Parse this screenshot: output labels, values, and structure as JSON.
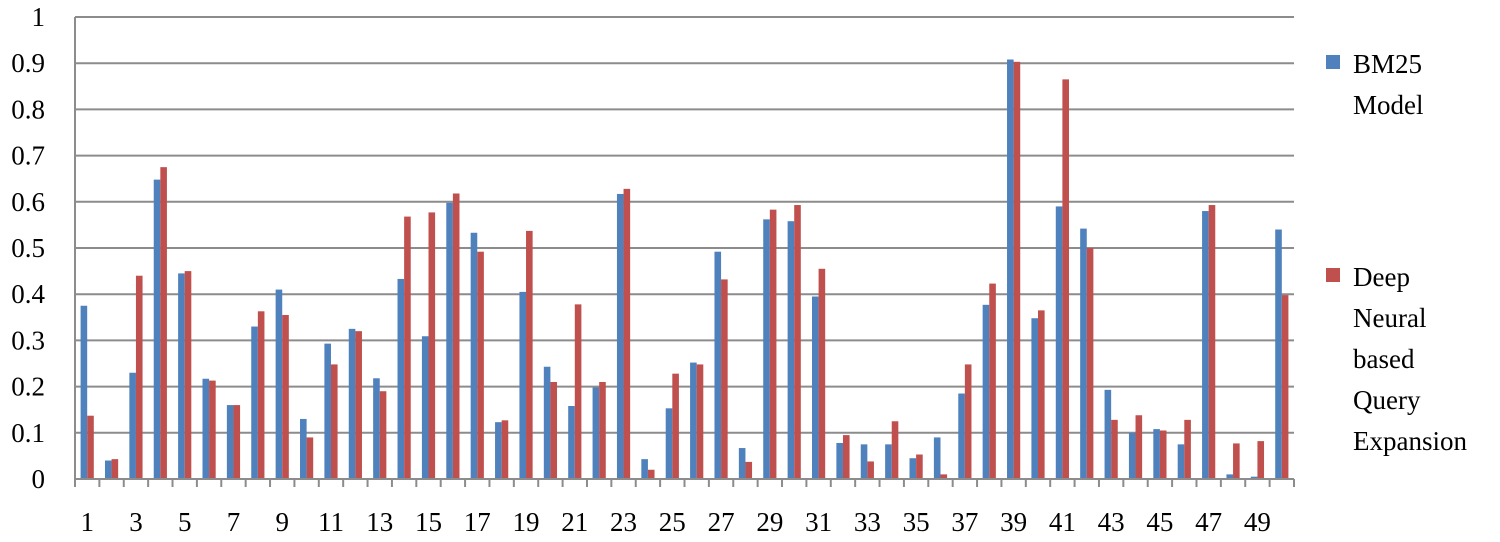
{
  "chart_data": {
    "type": "bar",
    "categories": [
      "1",
      "2",
      "3",
      "4",
      "5",
      "6",
      "7",
      "8",
      "9",
      "10",
      "11",
      "12",
      "13",
      "14",
      "15",
      "16",
      "17",
      "18",
      "19",
      "20",
      "21",
      "22",
      "23",
      "24",
      "25",
      "26",
      "27",
      "28",
      "29",
      "30",
      "31",
      "32",
      "33",
      "34",
      "35",
      "36",
      "37",
      "38",
      "39",
      "40",
      "41",
      "42",
      "43",
      "44",
      "45",
      "46",
      "47",
      "48",
      "49",
      "50"
    ],
    "x_tick_labels": [
      "1",
      "3",
      "5",
      "7",
      "9",
      "11",
      "13",
      "15",
      "17",
      "19",
      "21",
      "23",
      "25",
      "27",
      "29",
      "31",
      "33",
      "35",
      "37",
      "39",
      "41",
      "43",
      "45",
      "47",
      "49"
    ],
    "y_tick_labels": [
      "0",
      "0.1",
      "0.2",
      "0.3",
      "0.4",
      "0.5",
      "0.6",
      "0.7",
      "0.8",
      "0.9",
      "1"
    ],
    "ylim": [
      0,
      1
    ],
    "grid": true,
    "legend_position": "right",
    "series": [
      {
        "name": "BM25 Model",
        "legend_lines": [
          "BM25",
          "Model"
        ],
        "color": "#4f81bd",
        "values": [
          0.375,
          0.04,
          0.23,
          0.648,
          0.445,
          0.217,
          0.16,
          0.33,
          0.41,
          0.13,
          0.293,
          0.325,
          0.218,
          0.433,
          0.309,
          0.598,
          0.533,
          0.123,
          0.405,
          0.243,
          0.158,
          0.198,
          0.617,
          0.043,
          0.153,
          0.252,
          0.492,
          0.067,
          0.562,
          0.558,
          0.395,
          0.078,
          0.075,
          0.075,
          0.045,
          0.09,
          0.185,
          0.377,
          0.908,
          0.348,
          0.59,
          0.542,
          0.193,
          0.1,
          0.108,
          0.075,
          0.58,
          0.01,
          0.005,
          0.54
        ]
      },
      {
        "name": "Deep Neural based Query Expansion",
        "legend_lines": [
          "Deep",
          "Neural",
          "based",
          "Query",
          "Expansion"
        ],
        "color": "#c0504d",
        "values": [
          0.137,
          0.043,
          0.44,
          0.675,
          0.45,
          0.213,
          0.16,
          0.363,
          0.355,
          0.09,
          0.248,
          0.32,
          0.19,
          0.568,
          0.577,
          0.618,
          0.492,
          0.127,
          0.537,
          0.21,
          0.378,
          0.21,
          0.628,
          0.02,
          0.228,
          0.248,
          0.432,
          0.037,
          0.583,
          0.593,
          0.455,
          0.095,
          0.038,
          0.125,
          0.053,
          0.01,
          0.248,
          0.423,
          0.903,
          0.365,
          0.865,
          0.5,
          0.128,
          0.138,
          0.105,
          0.128,
          0.593,
          0.077,
          0.082,
          0.398
        ]
      }
    ]
  }
}
